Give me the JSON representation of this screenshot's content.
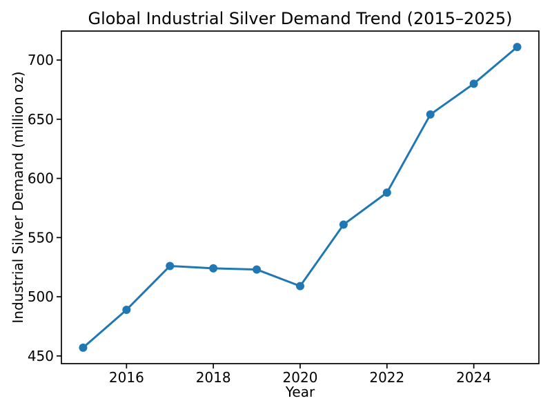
{
  "figure": {
    "background": "#ffffff"
  },
  "chart_data": {
    "type": "line",
    "title": "Global Industrial Silver Demand Trend (2015–2025)",
    "xlabel": "Year",
    "ylabel": "Industrial Silver Demand (million oz)",
    "series": [
      {
        "name": "Industrial Silver Demand",
        "x": [
          2015,
          2016,
          2017,
          2018,
          2019,
          2020,
          2021,
          2022,
          2023,
          2024,
          2025
        ],
        "values": [
          457,
          489,
          526,
          524,
          523,
          509,
          561,
          588,
          654,
          680,
          711
        ]
      }
    ],
    "xlim": [
      2014.5,
      2025.5
    ],
    "ylim": [
      443.5,
      724.5
    ],
    "xticks": [
      2016,
      2018,
      2020,
      2022,
      2024
    ],
    "yticks": [
      450,
      500,
      550,
      600,
      650,
      700
    ],
    "line_color": "#1f77b4",
    "marker": "circle",
    "marker_color": "#1f77b4",
    "spine_color": "#000000",
    "grid": false,
    "legend": "none"
  }
}
